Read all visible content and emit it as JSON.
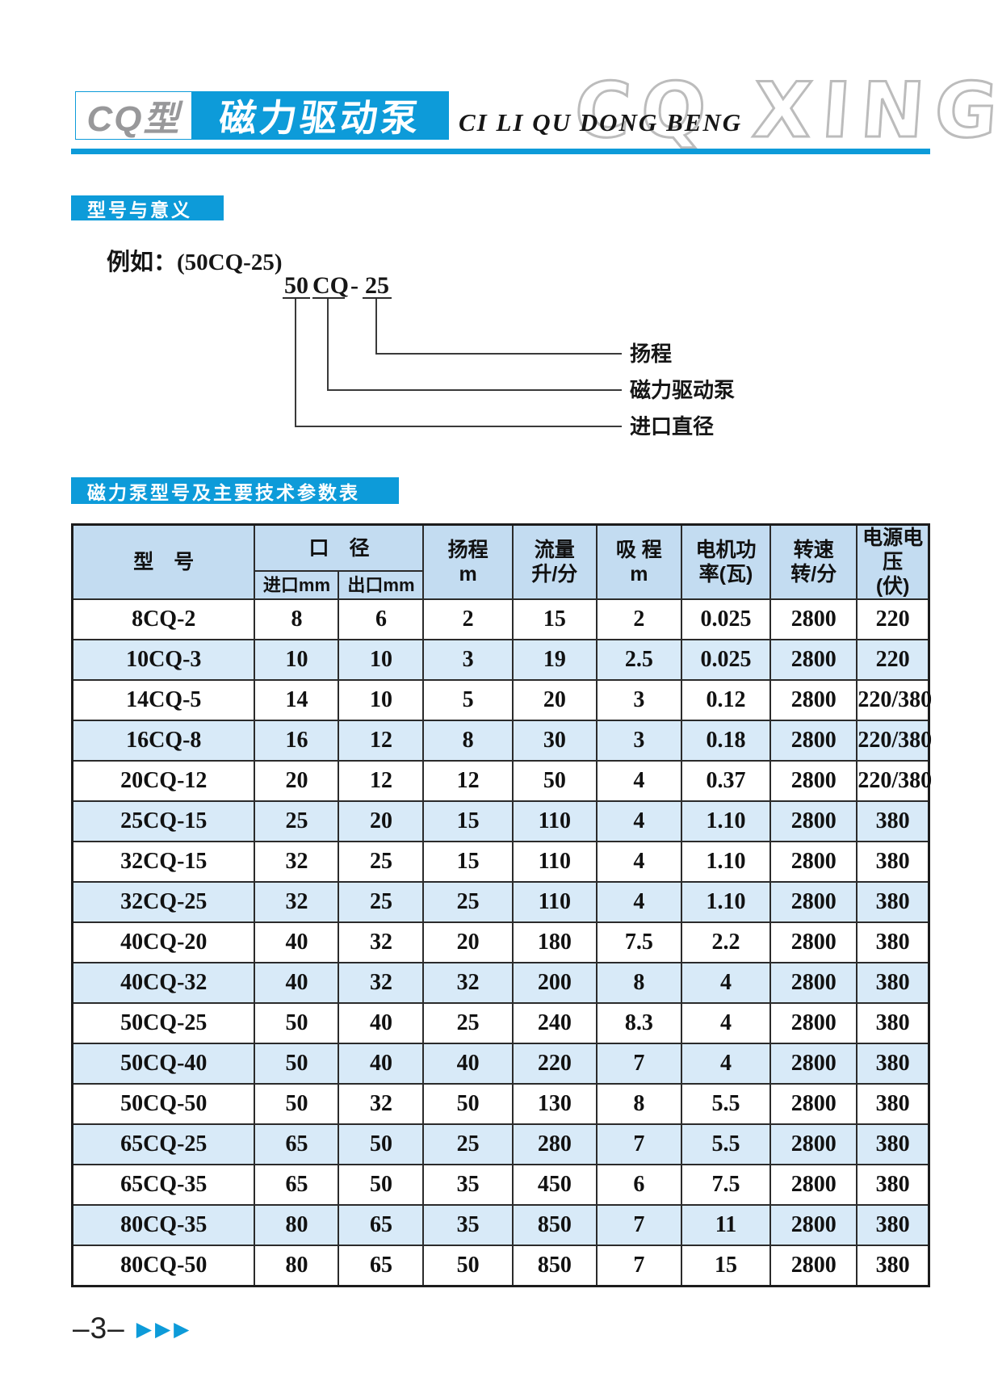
{
  "colors": {
    "accent_blue": "#0d9bd9",
    "table_header_blue": "#c3dcf1",
    "table_row_blue": "#d8eaf8",
    "watermark_gray": "#bcbcbc",
    "badge_gray": "#98989a"
  },
  "header": {
    "model_badge": "CQ型",
    "title_cn": "磁力驱动泵",
    "title_pinyin": "CI LI QU DONG BENG",
    "watermark": "CQ XING"
  },
  "sections": {
    "model_meaning": {
      "title": "型号与意义"
    },
    "params_table": {
      "title": "磁力泵型号及主要技术参数表"
    }
  },
  "diagram": {
    "example_label": "例如：(50CQ-25)",
    "code_parts": [
      "50",
      "CQ",
      "-",
      "25"
    ],
    "callouts": [
      {
        "label": "扬程"
      },
      {
        "label": "磁力驱动泵"
      },
      {
        "label": "进口直径"
      }
    ]
  },
  "table": {
    "header": {
      "model": "型　号",
      "diameter_group": "口　径",
      "inlet": "进口mm",
      "outlet": "出口mm",
      "head": "扬程\nm",
      "flow": "流量\n升/分",
      "suction": "吸 程\nm",
      "power": "电机功\n率(瓦)",
      "speed": "转速\n转/分",
      "voltage": "电源电压\n(伏)"
    },
    "rows": [
      [
        "8CQ-2",
        "8",
        "6",
        "2",
        "15",
        "2",
        "0.025",
        "2800",
        "220"
      ],
      [
        "10CQ-3",
        "10",
        "10",
        "3",
        "19",
        "2.5",
        "0.025",
        "2800",
        "220"
      ],
      [
        "14CQ-5",
        "14",
        "10",
        "5",
        "20",
        "3",
        "0.12",
        "2800",
        "220/380"
      ],
      [
        "16CQ-8",
        "16",
        "12",
        "8",
        "30",
        "3",
        "0.18",
        "2800",
        "220/380"
      ],
      [
        "20CQ-12",
        "20",
        "12",
        "12",
        "50",
        "4",
        "0.37",
        "2800",
        "220/380"
      ],
      [
        "25CQ-15",
        "25",
        "20",
        "15",
        "110",
        "4",
        "1.10",
        "2800",
        "380"
      ],
      [
        "32CQ-15",
        "32",
        "25",
        "15",
        "110",
        "4",
        "1.10",
        "2800",
        "380"
      ],
      [
        "32CQ-25",
        "32",
        "25",
        "25",
        "110",
        "4",
        "1.10",
        "2800",
        "380"
      ],
      [
        "40CQ-20",
        "40",
        "32",
        "20",
        "180",
        "7.5",
        "2.2",
        "2800",
        "380"
      ],
      [
        "40CQ-32",
        "40",
        "32",
        "32",
        "200",
        "8",
        "4",
        "2800",
        "380"
      ],
      [
        "50CQ-25",
        "50",
        "40",
        "25",
        "240",
        "8.3",
        "4",
        "2800",
        "380"
      ],
      [
        "50CQ-40",
        "50",
        "40",
        "40",
        "220",
        "7",
        "4",
        "2800",
        "380"
      ],
      [
        "50CQ-50",
        "50",
        "32",
        "50",
        "130",
        "8",
        "5.5",
        "2800",
        "380"
      ],
      [
        "65CQ-25",
        "65",
        "50",
        "25",
        "280",
        "7",
        "5.5",
        "2800",
        "380"
      ],
      [
        "65CQ-35",
        "65",
        "50",
        "35",
        "450",
        "6",
        "7.5",
        "2800",
        "380"
      ],
      [
        "80CQ-35",
        "80",
        "65",
        "35",
        "850",
        "7",
        "11",
        "2800",
        "380"
      ],
      [
        "80CQ-50",
        "80",
        "65",
        "50",
        "850",
        "7",
        "15",
        "2800",
        "380"
      ]
    ]
  },
  "footer": {
    "page_number": "–3–",
    "arrows": "▶▶▶"
  }
}
